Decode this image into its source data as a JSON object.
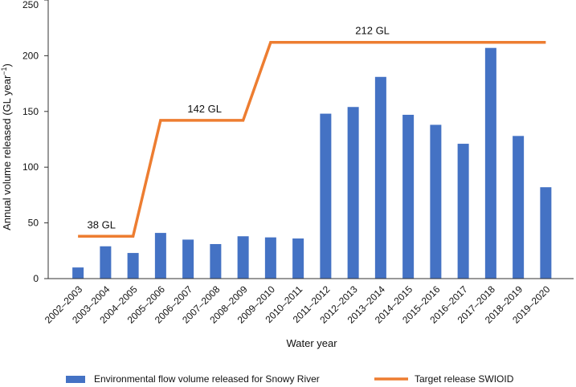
{
  "chart_data": {
    "type": "bar",
    "title": "",
    "xlabel": "Water year",
    "ylabel_prefix": "Annual volume released (GL year",
    "ylabel_sup": "−1",
    "ylabel_suffix": ")",
    "ylim": [
      0,
      250
    ],
    "yticks": [
      0,
      50,
      100,
      150,
      200,
      250
    ],
    "categories": [
      "2002–2003",
      "2003–2004",
      "2004–2005",
      "2005–2006",
      "2006–2007",
      "2007–2008",
      "2008–2009",
      "2009–2010",
      "2010–2011",
      "2011–2012",
      "2012–2013",
      "2013–2014",
      "2014–2015",
      "2015–2016",
      "2016–2017",
      "2017–2018",
      "2018–2019",
      "2019–2020"
    ],
    "series": [
      {
        "name": "Environmental flow volume released for Snowy River",
        "type": "bar",
        "color": "#4472C4",
        "values": [
          10,
          29,
          23,
          41,
          35,
          31,
          38,
          37,
          36,
          148,
          154,
          181,
          147,
          138,
          121,
          207,
          128,
          82
        ]
      },
      {
        "name": "Target release SWIOID",
        "type": "line",
        "color": "#ED7D31",
        "values": [
          38,
          38,
          38,
          142,
          142,
          142,
          142,
          212,
          212,
          212,
          212,
          212,
          212,
          212,
          212,
          212,
          212,
          212
        ]
      }
    ],
    "annotations": [
      {
        "text": "38 GL",
        "category_index": 0.85,
        "value": 38
      },
      {
        "text": "142 GL",
        "category_index": 4.6,
        "value": 142
      },
      {
        "text": "212 GL",
        "category_index": 10.7,
        "value": 212
      }
    ],
    "grid": false,
    "legend_position": "bottom"
  }
}
